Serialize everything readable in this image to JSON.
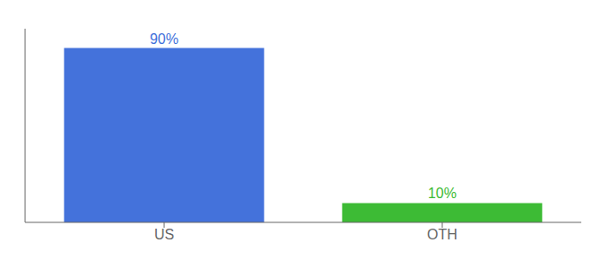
{
  "chart_data": {
    "type": "bar",
    "categories": [
      "US",
      "OTH"
    ],
    "values": [
      90,
      10
    ],
    "value_labels": [
      "90%",
      "10%"
    ],
    "colors": [
      "#4472db",
      "#3dbb35"
    ],
    "ylim": [
      0,
      100
    ],
    "data_labels": true,
    "tick_labels": "x",
    "grid": false
  }
}
